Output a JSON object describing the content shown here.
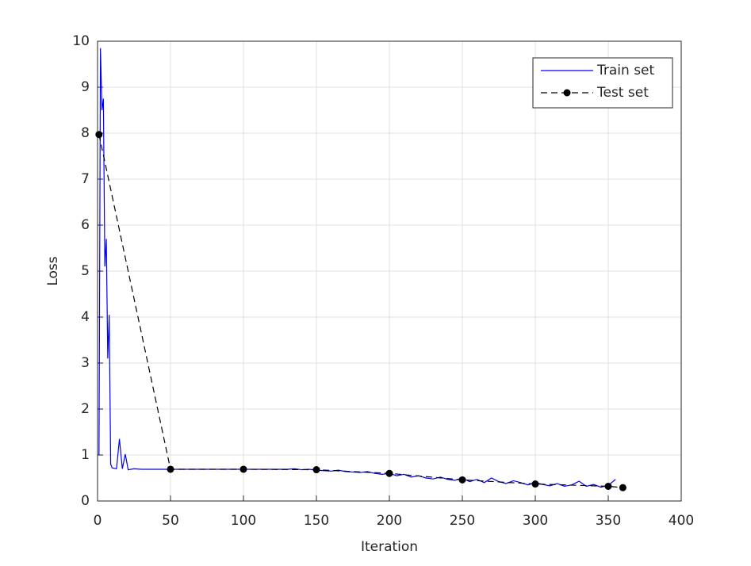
{
  "chart_data": {
    "type": "line",
    "xlabel": "Iteration",
    "ylabel": "Loss",
    "xlim": [
      0,
      400
    ],
    "xticks": [
      0,
      50,
      100,
      150,
      200,
      250,
      300,
      350,
      400
    ],
    "ylim": [
      0,
      10
    ],
    "yticks": [
      0,
      1,
      2,
      3,
      4,
      5,
      6,
      7,
      8,
      9,
      10
    ],
    "grid": true,
    "legend": "northeast",
    "series": [
      {
        "name": "Train set",
        "color": "#0000ff",
        "style": "solid",
        "marker": false,
        "x": [
          1,
          2,
          3,
          4,
          5,
          6,
          7,
          8,
          9,
          10,
          13,
          15,
          17,
          19,
          21,
          25,
          30,
          35,
          40,
          45,
          50,
          55,
          60,
          65,
          70,
          75,
          80,
          85,
          90,
          95,
          100,
          105,
          110,
          115,
          120,
          125,
          130,
          135,
          140,
          145,
          150,
          155,
          160,
          165,
          170,
          175,
          180,
          185,
          190,
          195,
          200,
          205,
          210,
          215,
          220,
          225,
          230,
          235,
          240,
          245,
          250,
          255,
          260,
          265,
          270,
          275,
          280,
          285,
          290,
          295,
          300,
          305,
          310,
          315,
          320,
          325,
          330,
          335,
          340,
          345,
          350,
          355
        ],
        "values": [
          1.0,
          9.85,
          8.5,
          8.75,
          5.1,
          5.7,
          3.1,
          4.05,
          0.8,
          0.72,
          0.7,
          1.35,
          0.7,
          1.02,
          0.68,
          0.7,
          0.69,
          0.69,
          0.69,
          0.69,
          0.69,
          0.69,
          0.69,
          0.69,
          0.69,
          0.69,
          0.69,
          0.69,
          0.69,
          0.69,
          0.69,
          0.69,
          0.69,
          0.69,
          0.69,
          0.69,
          0.69,
          0.7,
          0.68,
          0.69,
          0.67,
          0.66,
          0.65,
          0.67,
          0.64,
          0.63,
          0.62,
          0.64,
          0.6,
          0.58,
          0.6,
          0.55,
          0.58,
          0.52,
          0.55,
          0.5,
          0.48,
          0.52,
          0.47,
          0.45,
          0.5,
          0.42,
          0.47,
          0.4,
          0.5,
          0.42,
          0.38,
          0.44,
          0.4,
          0.35,
          0.4,
          0.36,
          0.33,
          0.38,
          0.32,
          0.35,
          0.43,
          0.32,
          0.36,
          0.3,
          0.34,
          0.47
        ]
      },
      {
        "name": "Test set",
        "color": "#000000",
        "style": "dashed",
        "marker": true,
        "x": [
          1,
          50,
          100,
          150,
          200,
          250,
          300,
          350,
          360
        ],
        "values": [
          7.97,
          0.69,
          0.69,
          0.68,
          0.6,
          0.46,
          0.37,
          0.32,
          0.29
        ]
      }
    ]
  }
}
